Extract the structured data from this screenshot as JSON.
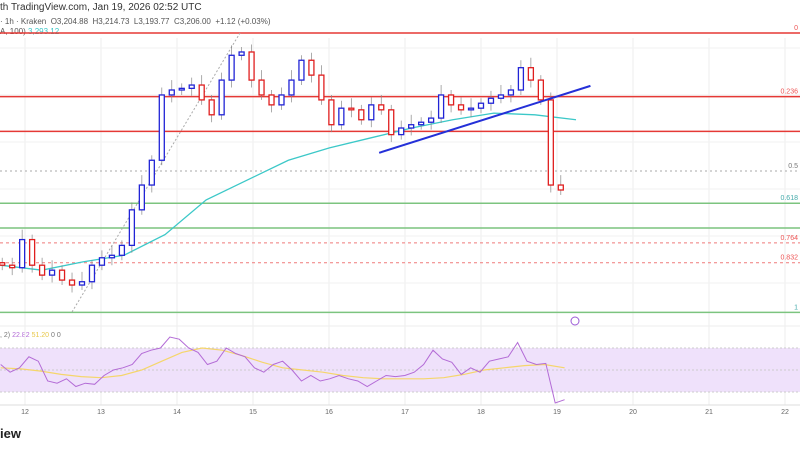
{
  "header": {
    "watermark": "th TradingView.com, Jan 19, 2026 02:52 UTC",
    "symbol": "· 1h · Kraken",
    "open": "O3,204.88",
    "high": "H3,214.73",
    "low": "L3,193.77",
    "close": "C3,206.00",
    "change": "+1.12 (+0.03%)",
    "ma_label": "A, 100)",
    "ma_value": "3,293.12"
  },
  "rsi_header": {
    "label": ", 2)",
    "rsi": "22.82",
    "signal": "51.20",
    "extra": "0 0"
  },
  "logo_text": "iew",
  "colors": {
    "up": "#2124d6",
    "down": "#e01e1e",
    "ma": "#3cc8c8",
    "rsi": "#b36bd6",
    "rsi_signal": "#f5d66b",
    "band": "#efe1fb",
    "fib_red": "#e53935",
    "fib_green": "#4caf50",
    "trend": "#2430d8"
  },
  "chart_data": [
    {
      "type": "candlestick",
      "xlabel": "",
      "ylabel": "",
      "x_ticks": [
        "12",
        "13",
        "14",
        "15",
        "16",
        "17",
        "18",
        "19",
        "20",
        "21",
        "22"
      ],
      "x_range_days": [
        11.68,
        22.2
      ],
      "ylim": [
        3050,
        3430
      ],
      "closes": [
        3115,
        3112,
        3146,
        3115,
        3103,
        3109,
        3097,
        3091,
        3095,
        3115,
        3124,
        3127,
        3139,
        3182,
        3212,
        3242,
        3321,
        3327,
        3329,
        3333,
        3315,
        3297,
        3339,
        3369,
        3373,
        3339,
        3321,
        3309,
        3321,
        3339,
        3363,
        3345,
        3315,
        3285,
        3305,
        3303,
        3291,
        3309,
        3303,
        3273,
        3281,
        3285,
        3288,
        3293,
        3321,
        3309,
        3303,
        3305,
        3311,
        3317,
        3321,
        3327,
        3354,
        3339,
        3315,
        3212,
        3206
      ],
      "candle_span_days": [
        11.7,
        19.05
      ],
      "ma100": {
        "label": "MA 100",
        "values": [
          3115,
          3109,
          3119,
          3127,
          3152,
          3194,
          3218,
          3242,
          3257,
          3269,
          3281,
          3291,
          3299,
          3297,
          3291
        ]
      },
      "fib_levels": [
        {
          "label": "0",
          "price": 3396,
          "style": "solid-red"
        },
        {
          "label": "0.236",
          "price": 3319,
          "style": "solid-red"
        },
        {
          "label": "",
          "price": 3277,
          "style": "solid-red"
        },
        {
          "label": "0.5",
          "price": 3229,
          "style": "dotted-grey"
        },
        {
          "label": "0.618",
          "price": 3190,
          "style": "solid-green"
        },
        {
          "label": "",
          "price": 3160,
          "style": "solid-green"
        },
        {
          "label": "0.764",
          "price": 3142,
          "style": "dashed-red"
        },
        {
          "label": "0.832",
          "price": 3118,
          "style": "dashed-red"
        },
        {
          "label": "1",
          "price": 3058,
          "style": "solid-green"
        }
      ],
      "trendline": {
        "from": {
          "day": 16.66,
          "price": 3251
        },
        "to": {
          "day": 19.44,
          "price": 3332
        }
      }
    },
    {
      "type": "line",
      "title": "RSI",
      "ylim": [
        0,
        100
      ],
      "bands": [
        30,
        70
      ],
      "rsi": [
        55,
        48,
        52,
        62,
        58,
        40,
        38,
        42,
        35,
        38,
        37,
        45,
        50,
        52,
        55,
        65,
        68,
        70,
        80,
        78,
        70,
        66,
        55,
        58,
        70,
        65,
        62,
        52,
        48,
        55,
        58,
        50,
        40,
        45,
        40,
        42,
        45,
        42,
        40,
        35,
        40,
        45,
        44,
        45,
        48,
        55,
        68,
        60,
        57,
        46,
        52,
        48,
        58,
        60,
        62,
        75,
        58,
        55,
        56,
        20,
        23
      ],
      "signal": [
        52,
        51,
        49,
        46,
        44,
        43,
        45,
        50,
        58,
        66,
        70,
        68,
        63,
        57,
        52,
        50,
        48,
        45,
        43,
        42,
        42,
        42,
        43,
        46,
        50,
        52,
        54,
        55,
        52
      ],
      "span_days": [
        11.68,
        19.1
      ]
    }
  ]
}
